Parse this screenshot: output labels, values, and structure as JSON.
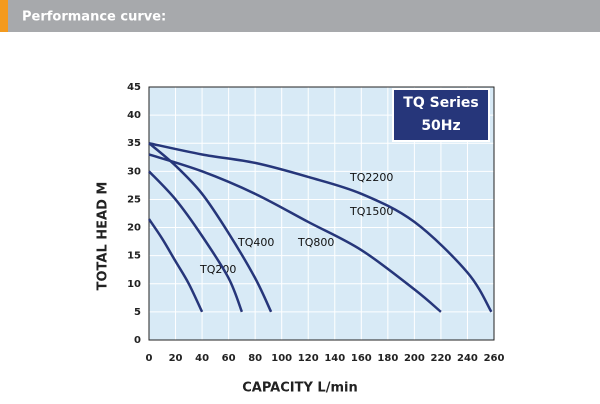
{
  "chart_data": {
    "type": "line",
    "title": "Performance curve:",
    "annotations": [
      "TQ Series",
      "50Hz"
    ],
    "xlabel": "CAPACITY L/min",
    "ylabel": "TOTAL HEAD M",
    "xlim": [
      0,
      260
    ],
    "xticks": [
      0,
      20,
      40,
      60,
      80,
      100,
      120,
      140,
      160,
      180,
      200,
      220,
      240,
      260
    ],
    "ylim": [
      0,
      45
    ],
    "yticks": [
      0,
      5,
      10,
      15,
      20,
      25,
      30,
      35,
      40,
      45
    ],
    "grid": true,
    "series": [
      {
        "name": "TQ200",
        "color": "#26367a",
        "x": [
          0,
          10,
          20,
          30,
          40
        ],
        "values": [
          21.5,
          18,
          14,
          10,
          5
        ]
      },
      {
        "name": "TQ400",
        "color": "#26367a",
        "x": [
          0,
          20,
          40,
          60,
          70
        ],
        "values": [
          30,
          25,
          18.5,
          11,
          5
        ]
      },
      {
        "name": "TQ800",
        "color": "#26367a",
        "x": [
          0,
          20,
          40,
          60,
          80,
          92
        ],
        "values": [
          35,
          31,
          26,
          19,
          11,
          5
        ]
      },
      {
        "name": "TQ1500",
        "color": "#26367a",
        "x": [
          0,
          40,
          80,
          120,
          160,
          200,
          220
        ],
        "values": [
          33,
          30,
          26,
          21,
          16,
          9,
          5
        ]
      },
      {
        "name": "TQ2200",
        "color": "#26367a",
        "x": [
          0,
          40,
          80,
          120,
          160,
          200,
          240,
          258
        ],
        "values": [
          35,
          33,
          31.5,
          29,
          26,
          21,
          12,
          5
        ]
      }
    ]
  }
}
